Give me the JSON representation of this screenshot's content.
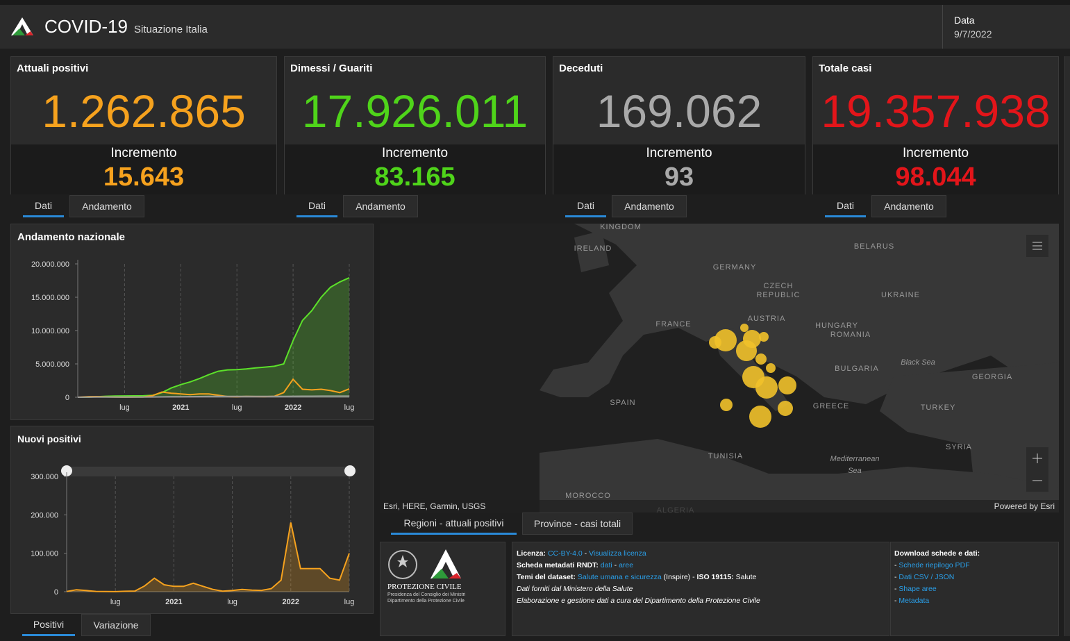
{
  "header": {
    "title": "COVID-19",
    "subtitle": "Situazione Italia",
    "date_label": "Data",
    "date": "9/7/2022"
  },
  "cards": [
    {
      "title": "Attuali positivi",
      "value": "1.262.865",
      "increment_label": "Incremento",
      "increment": "15.643",
      "color": "#f6a21e",
      "tabs": [
        "Dati",
        "Andamento"
      ]
    },
    {
      "title": "Dimessi / Guariti",
      "value": "17.926.011",
      "increment_label": "Incremento",
      "increment": "83.165",
      "color": "#4fd41a",
      "tabs": [
        "Dati",
        "Andamento"
      ]
    },
    {
      "title": "Deceduti",
      "value": "169.062",
      "increment_label": "Incremento",
      "increment": "93",
      "color": "#a9a9a9",
      "tabs": [
        "Dati",
        "Andamento"
      ]
    },
    {
      "title": "Totale casi",
      "value": "19.357.938",
      "increment_label": "Incremento",
      "increment": "98.044",
      "color": "#e3151a",
      "tabs": [
        "Dati",
        "Andamento"
      ]
    }
  ],
  "national_chart": {
    "type": "line",
    "title": "Andamento nazionale",
    "x": [
      "2020-02",
      "2020-03",
      "2020-04",
      "2020-05",
      "2020-06",
      "2020-07",
      "2020-08",
      "2020-09",
      "2020-10",
      "2020-11",
      "2020-12",
      "2021-01",
      "2021-02",
      "2021-03",
      "2021-04",
      "2021-05",
      "2021-06",
      "2021-07",
      "2021-08",
      "2021-09",
      "2021-10",
      "2021-11",
      "2021-12",
      "2022-01",
      "2022-02",
      "2022-03",
      "2022-04",
      "2022-05",
      "2022-06",
      "2022-07"
    ],
    "series": [
      {
        "color": "#5ce12a",
        "fill": true,
        "values": [
          0,
          10000,
          80000,
          150000,
          180000,
          195000,
          205000,
          220000,
          290000,
          700000,
          1400000,
          1900000,
          2300000,
          2800000,
          3400000,
          3900000,
          4100000,
          4150000,
          4250000,
          4400000,
          4520000,
          4650000,
          5000000,
          8500000,
          11500000,
          13000000,
          15000000,
          16500000,
          17300000,
          17926011
        ]
      },
      {
        "color": "#f6a21e",
        "fill": false,
        "values": [
          0,
          80000,
          100000,
          50000,
          20000,
          13000,
          20000,
          40000,
          250000,
          780000,
          600000,
          500000,
          400000,
          500000,
          500000,
          300000,
          100000,
          80000,
          130000,
          100000,
          90000,
          150000,
          700000,
          2700000,
          1200000,
          1100000,
          1200000,
          1000000,
          700000,
          1262865
        ]
      },
      {
        "color": "#9a9a9a",
        "fill": false,
        "values": [
          0,
          10000,
          27000,
          33000,
          34000,
          35000,
          35500,
          36000,
          38000,
          55000,
          74000,
          86000,
          97000,
          106000,
          120000,
          126000,
          127000,
          128000,
          130000,
          131000,
          132000,
          134000,
          137000,
          145000,
          153000,
          158000,
          163000,
          166000,
          168000,
          169062
        ]
      }
    ],
    "xlim": [
      "2020-02",
      "2022-07"
    ],
    "xticks": [
      {
        "value": "2020-07",
        "label": "lug"
      },
      {
        "value": "2021-01",
        "label": "2021"
      },
      {
        "value": "2021-07",
        "label": "lug"
      },
      {
        "value": "2022-01",
        "label": "2022"
      },
      {
        "value": "2022-07",
        "label": "lug"
      }
    ],
    "ylim": [
      0,
      20000000
    ],
    "yticks": [
      {
        "value": 0,
        "label": "0"
      },
      {
        "value": 5000000,
        "label": "5.000.000"
      },
      {
        "value": 10000000,
        "label": "10.000.000"
      },
      {
        "value": 15000000,
        "label": "15.000.000"
      },
      {
        "value": 20000000,
        "label": "20.000.000"
      }
    ]
  },
  "new_chart": {
    "type": "line",
    "title": "Nuovi positivi",
    "x": [
      "2020-02",
      "2020-03",
      "2020-04",
      "2020-05",
      "2020-06",
      "2020-07",
      "2020-08",
      "2020-09",
      "2020-10",
      "2020-11",
      "2020-12",
      "2021-01",
      "2021-02",
      "2021-03",
      "2021-04",
      "2021-05",
      "2021-06",
      "2021-07",
      "2021-08",
      "2021-09",
      "2021-10",
      "2021-11",
      "2021-12",
      "2022-01",
      "2022-02",
      "2022-03",
      "2022-04",
      "2022-05",
      "2022-06",
      "2022-07"
    ],
    "series": [
      {
        "color": "#f6a21e",
        "fill": true,
        "values": [
          500,
          5000,
          3000,
          800,
          300,
          250,
          1000,
          1600,
          15000,
          35000,
          18000,
          14000,
          14000,
          22000,
          14000,
          6000,
          1500,
          3000,
          6000,
          4000,
          3500,
          8000,
          30000,
          180000,
          60000,
          60000,
          60000,
          35000,
          30000,
          100000
        ]
      }
    ],
    "xlim": [
      "2020-02",
      "2022-07"
    ],
    "xticks": [
      {
        "value": "2020-07",
        "label": "lug"
      },
      {
        "value": "2021-01",
        "label": "2021"
      },
      {
        "value": "2021-07",
        "label": "lug"
      },
      {
        "value": "2022-01",
        "label": "2022"
      },
      {
        "value": "2022-07",
        "label": "lug"
      }
    ],
    "ylim": [
      0,
      300000
    ],
    "yticks": [
      {
        "value": 0,
        "label": "0"
      },
      {
        "value": 100000,
        "label": "100.000"
      },
      {
        "value": 200000,
        "label": "200.000"
      },
      {
        "value": 300000,
        "label": "300.000"
      }
    ],
    "tabs": [
      "Positivi",
      "Variazione"
    ]
  },
  "map": {
    "labels": [
      "KINGDOM",
      "IRELAND",
      "BELARUS",
      "GERMANY",
      "CZECH",
      "REPUBLIC",
      "UKRAINE",
      "AUSTRIA",
      "HUNGARY",
      "FRANCE",
      "ROMANIA",
      "Black Sea",
      "BULGARIA",
      "GEORGIA",
      "SPAIN",
      "GREECE",
      "TURKEY",
      "SYRIA",
      "TUNISIA",
      "Mediterranean",
      "Sea",
      "MOROCCO",
      "ALGERIA"
    ],
    "attribution": "Esri, HERE, Garmin, USGS",
    "powered": "Powered by Esri",
    "tabs": [
      "Regioni - attuali positivi",
      "Province - casi totali"
    ]
  },
  "footer": {
    "logo": [
      "PROTEZIONE CIVILE",
      "Presidenza del Consiglio dei Ministri",
      "Dipartimento della Protezione Civile"
    ],
    "info": [
      [
        "Licenza:",
        "CC-BY-4.0",
        "-",
        "Visualizza licenza"
      ],
      [
        "Scheda metadati RNDT:",
        "dati",
        "-",
        "aree"
      ],
      [
        "Temi del dataset:",
        "Salute umana e sicurezza",
        "(Inspire) -",
        "ISO 19115:",
        "Salute"
      ],
      [
        "Dati forniti dal Ministero della Salute"
      ],
      [
        "Elaborazione e gestione dati a cura del Dipartimento della Protezione Civile"
      ]
    ],
    "download_title": "Download schede e dati:",
    "bullet": "-",
    "downloads": [
      "Schede riepilogo PDF",
      "Dati CSV / JSON",
      "Shape aree",
      "Metadata"
    ]
  }
}
